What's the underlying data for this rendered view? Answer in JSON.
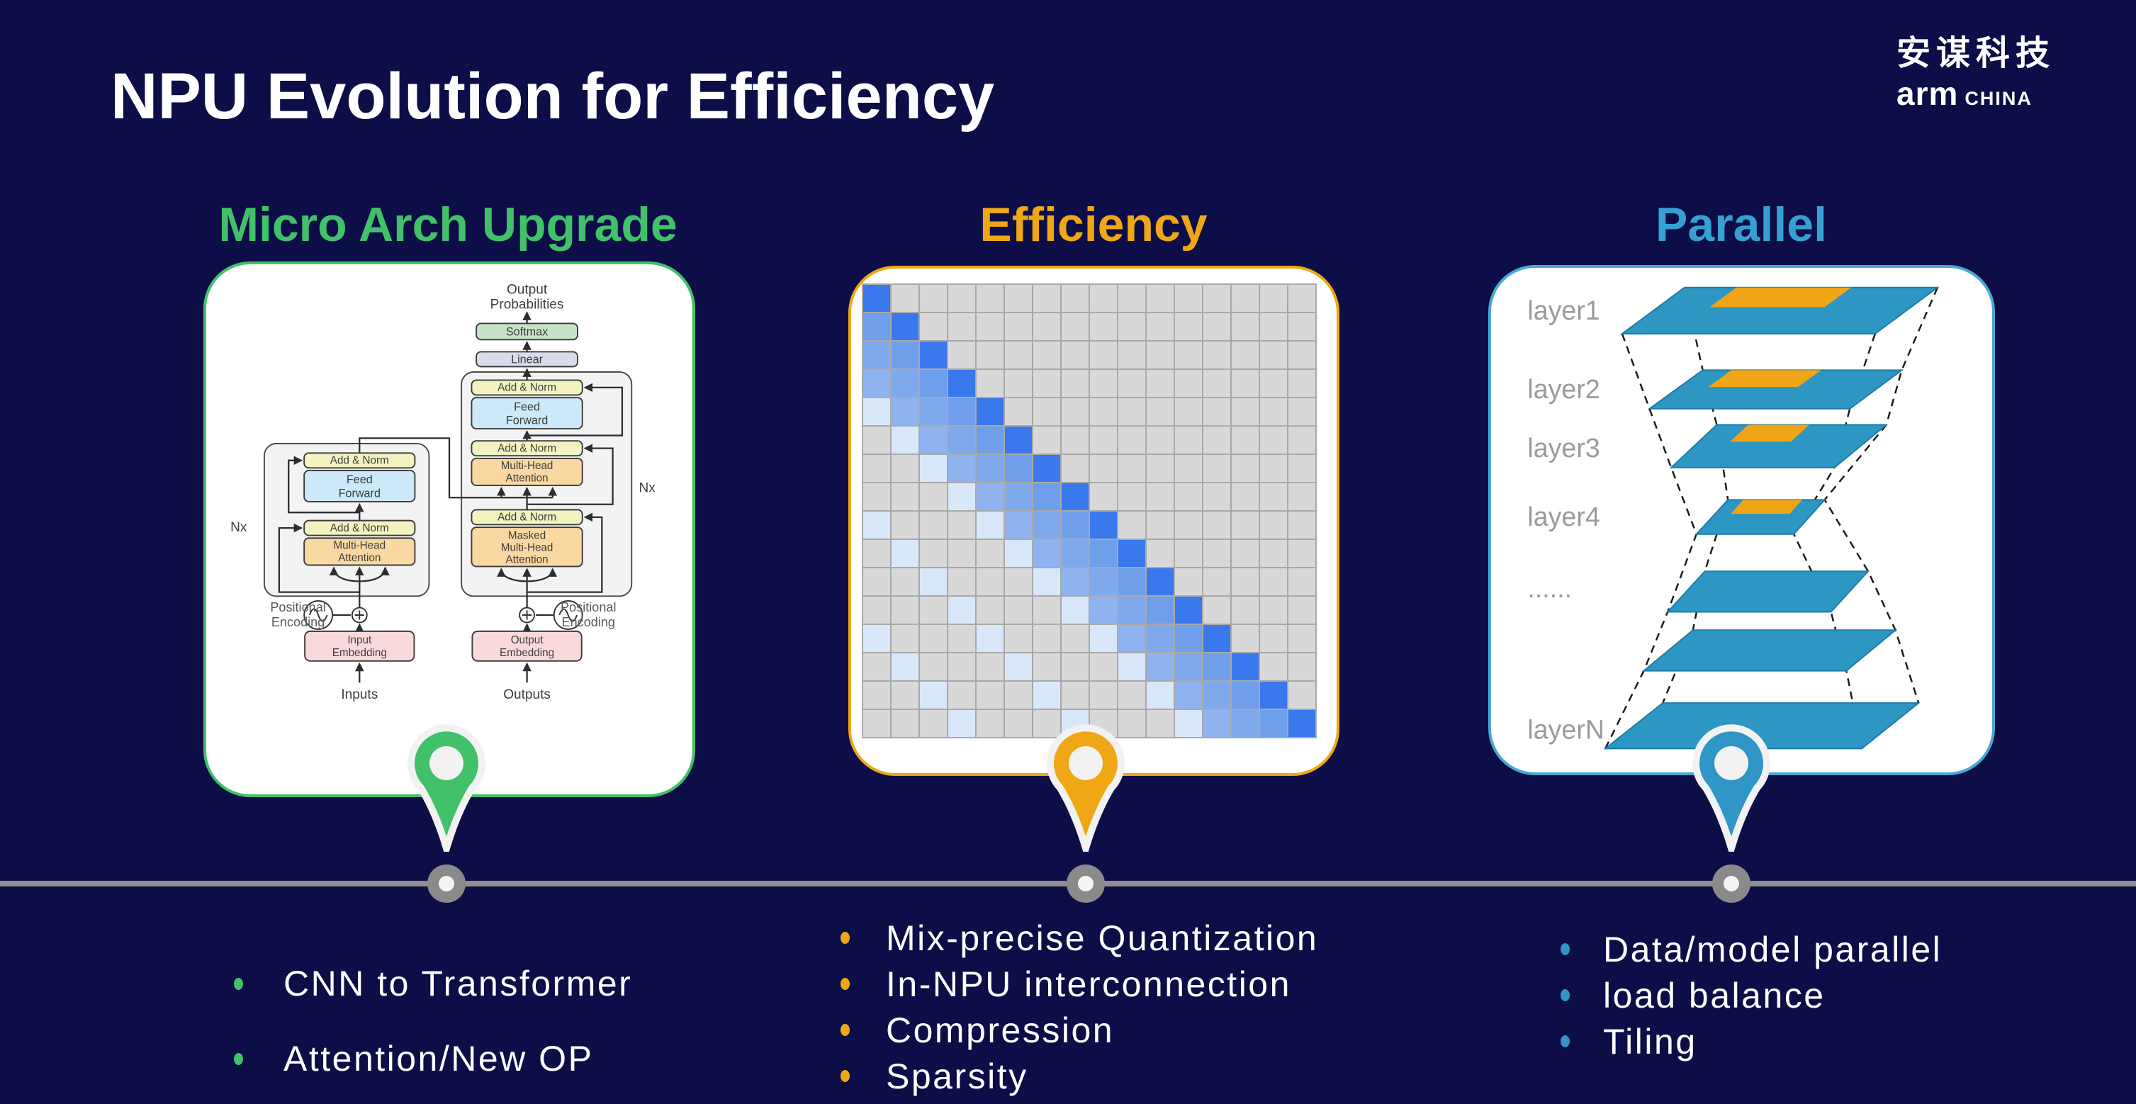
{
  "slide": {
    "title": "NPU Evolution for Efficiency"
  },
  "logo": {
    "chinese": "安谋科技",
    "brand": "arm",
    "region": "CHINA"
  },
  "columns": [
    {
      "heading": "Micro Arch Upgrade",
      "accent": "#41C16A",
      "bullets": [
        "CNN to Transformer",
        "Attention/New OP"
      ]
    },
    {
      "heading": "Efficiency",
      "accent": "#EFA716",
      "bullets": [
        "Mix-precise Quantization",
        "In-NPU interconnection",
        "Compression",
        "Sparsity"
      ]
    },
    {
      "heading": "Parallel",
      "accent": "#2F96C5",
      "bullets": [
        "Data/model parallel",
        "load balance",
        "Tiling"
      ]
    }
  ],
  "timeline": {
    "line_color": "#8F8F8F",
    "node_color": "#8A8A8A"
  },
  "transformer": {
    "output_top": "Output",
    "output_bottom": "Probabilities",
    "softmax": "Softmax",
    "linear": "Linear",
    "add_norm": "Add & Norm",
    "feed_1": "Feed",
    "feed_2": "Forward",
    "mha_1": "Multi-Head",
    "mha_2": "Attention",
    "masked_1": "Masked",
    "masked_2": "Multi-Head",
    "masked_3": "Attention",
    "nx": "Nx",
    "pos_1": "Positional",
    "pos_2": "Encoding",
    "input_emb_1": "Input",
    "input_emb_2": "Embedding",
    "output_emb_1": "Output",
    "output_emb_2": "Embedding",
    "inputs": "Inputs",
    "outputs": "Outputs"
  },
  "matrix": {
    "rows": 16,
    "cols": 16,
    "palette": {
      "base": "#D8D8D8",
      "line": "#A9A9A9",
      "diag": "#3A78EE",
      "off1": "#6F9EEB",
      "off2": "#7FA9ED",
      "off3": "#8FB3EF",
      "far": "#D9E7FB"
    },
    "pattern": "lower-triangular band: diagonal dark blue, 3 sub-diagonals medium blue, every 4th sub-diagonal light blue, rest gray"
  },
  "parallel": {
    "labels": [
      "layer1",
      "layer2",
      "layer3",
      "layer4",
      "......",
      "layerN"
    ],
    "layer_color": "#2D96C3",
    "patch_color": "#F0A516"
  }
}
